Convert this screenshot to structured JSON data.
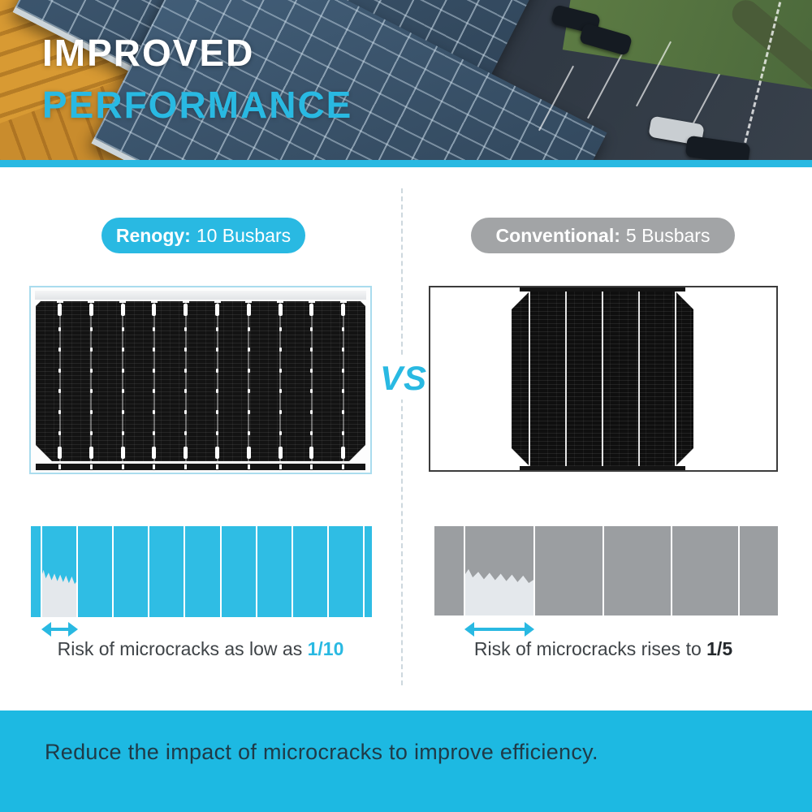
{
  "header": {
    "title_line1": "IMPROVED",
    "title_line2": "PERFORMANCE"
  },
  "divider": {
    "vs_label": "VS"
  },
  "left_panel": {
    "badge": {
      "brand": "Renogy:",
      "detail": "10 Busbars"
    },
    "busbar_count": 10,
    "bar": {
      "segment_line_percents": [
        3.1,
        13.6,
        24.1,
        34.6,
        45.1,
        55.6,
        66.1,
        76.6,
        87.1,
        97.6
      ],
      "crack_left_pct": 3.1,
      "crack_width_pct": 10.6
    },
    "caption": {
      "text": "Risk of microcracks as low as ",
      "value": "1/10"
    }
  },
  "right_panel": {
    "badge": {
      "brand": "Conventional:",
      "detail": "5 Busbars"
    },
    "busbar_count": 5,
    "bar": {
      "segment_line_percents": [
        8.7,
        29.1,
        49.2,
        69.0,
        88.7
      ],
      "crack_left_pct": 8.7,
      "crack_width_pct": 20.4
    },
    "caption": {
      "text": "Risk of microcracks rises to ",
      "value": "1/5"
    }
  },
  "footer": {
    "text": "Reduce the impact of microcracks to improve efficiency."
  },
  "colors": {
    "accent": "#29b9e2",
    "conventional_gray": "#a2a4a6",
    "bar_cyan": "#2fbde4",
    "bar_gray": "#9b9ea1",
    "crack_fill": "#e4e8ec",
    "caption_text": "#3e4347",
    "footer_bg": "#1db9e2",
    "footer_text": "#1f3a47"
  }
}
